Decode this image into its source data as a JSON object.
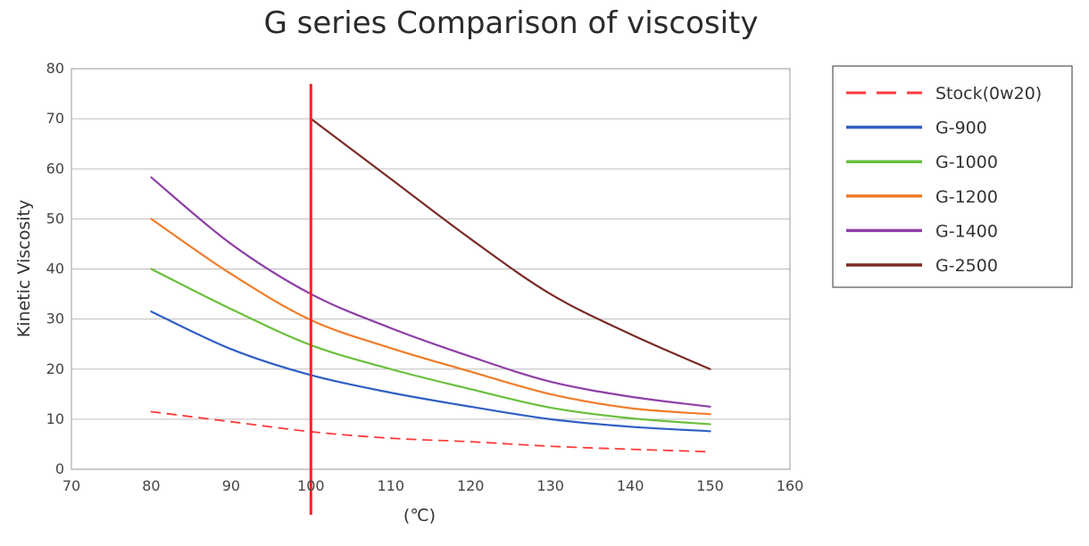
{
  "chart_data": {
    "type": "line",
    "title": "G series Comparison of viscosity",
    "xlabel": "(℃)",
    "ylabel": "Kinetic Viscosity",
    "xlim": [
      70,
      160
    ],
    "ylim": [
      0,
      80
    ],
    "xticks": [
      70,
      80,
      90,
      100,
      110,
      120,
      130,
      140,
      150,
      160
    ],
    "yticks": [
      0,
      10,
      20,
      30,
      40,
      50,
      60,
      70,
      80
    ],
    "grid": "horizontal",
    "legend_position": "right",
    "reference_line": {
      "x": 100,
      "color": "#ff2020"
    },
    "series": [
      {
        "name": "Stock(0w20)",
        "color": "#ff3b3b",
        "dashed": true,
        "x": [
          80,
          90,
          100,
          110,
          120,
          130,
          140,
          150
        ],
        "y": [
          11.5,
          9.5,
          7.5,
          6.2,
          5.5,
          4.6,
          4.0,
          3.5
        ]
      },
      {
        "name": "G-900",
        "color": "#2f5fc4",
        "dashed": false,
        "x": [
          80,
          90,
          100,
          110,
          120,
          130,
          140,
          150
        ],
        "y": [
          31.5,
          24,
          18.8,
          15.3,
          12.5,
          10,
          8.5,
          7.6
        ]
      },
      {
        "name": "G-1000",
        "color": "#6abf3c",
        "dashed": false,
        "x": [
          80,
          90,
          100,
          110,
          120,
          130,
          140,
          150
        ],
        "y": [
          40,
          32,
          24.8,
          20,
          16,
          12.3,
          10.2,
          9.0
        ]
      },
      {
        "name": "G-1200",
        "color": "#f07c2a",
        "dashed": false,
        "x": [
          80,
          90,
          100,
          110,
          120,
          130,
          140,
          150
        ],
        "y": [
          50,
          39,
          29.8,
          24.2,
          19.5,
          15,
          12.2,
          11.0
        ]
      },
      {
        "name": "G-1400",
        "color": "#8e3fa6",
        "dashed": false,
        "x": [
          80,
          90,
          100,
          110,
          120,
          130,
          140,
          150
        ],
        "y": [
          58.3,
          45,
          35,
          28.2,
          22.5,
          17.5,
          14.5,
          12.5
        ]
      },
      {
        "name": "G-2500",
        "color": "#7a2a26",
        "dashed": false,
        "x": [
          100,
          110,
          120,
          130,
          140,
          150
        ],
        "y": [
          70,
          58,
          46,
          35,
          27,
          20
        ]
      }
    ]
  }
}
